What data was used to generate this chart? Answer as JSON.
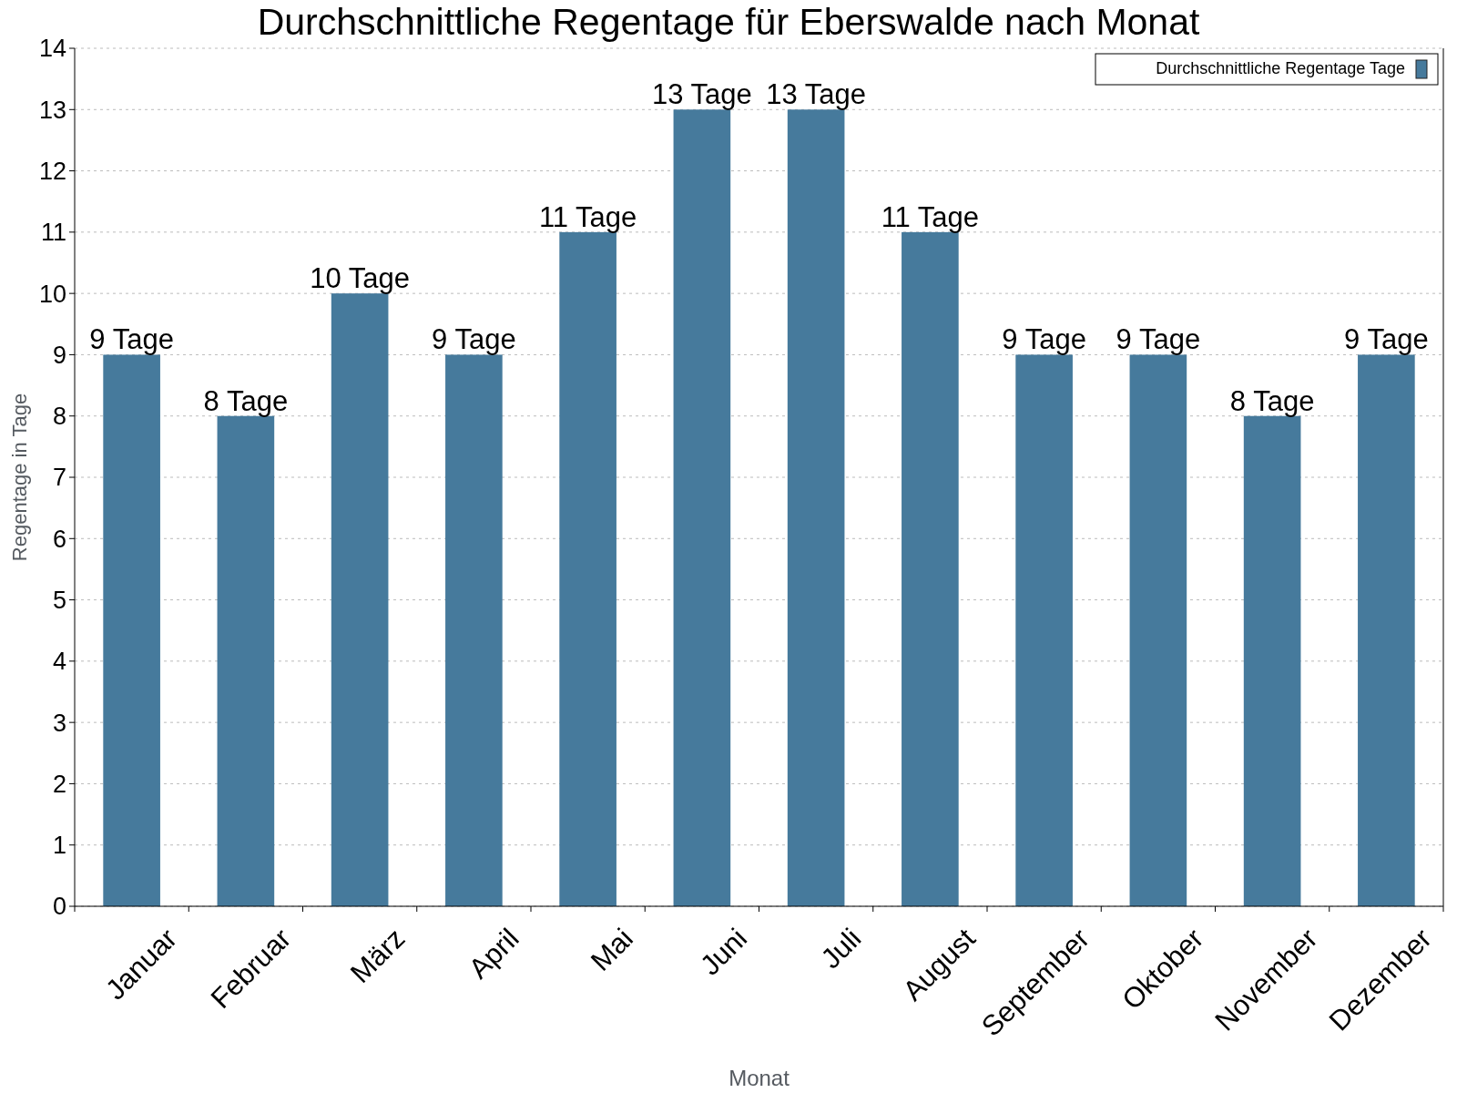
{
  "chart_data": {
    "type": "bar",
    "title": "Durchschnittliche Regentage für Eberswalde nach Monat",
    "xlabel": "Monat",
    "ylabel": "Regentage in Tage",
    "categories": [
      "Januar",
      "Februar",
      "März",
      "April",
      "Mai",
      "Juni",
      "Juli",
      "August",
      "September",
      "Oktober",
      "November",
      "Dezember"
    ],
    "series": [
      {
        "name": "Durchschnittliche Regentage Tage",
        "color": "#467a9c",
        "values": [
          9,
          8,
          10,
          9,
          11,
          13,
          13,
          11,
          9,
          9,
          8,
          9
        ],
        "value_labels": [
          "9 Tage",
          "8 Tage",
          "10 Tage",
          "9 Tage",
          "11 Tage",
          "13 Tage",
          "13 Tage",
          "11 Tage",
          "9 Tage",
          "9 Tage",
          "8 Tage",
          "9 Tage"
        ]
      }
    ],
    "ylim": [
      0,
      14
    ],
    "yticks": [
      0,
      1,
      2,
      3,
      4,
      5,
      6,
      7,
      8,
      9,
      10,
      11,
      12,
      13,
      14
    ],
    "grid": "y",
    "legend": "top right"
  }
}
